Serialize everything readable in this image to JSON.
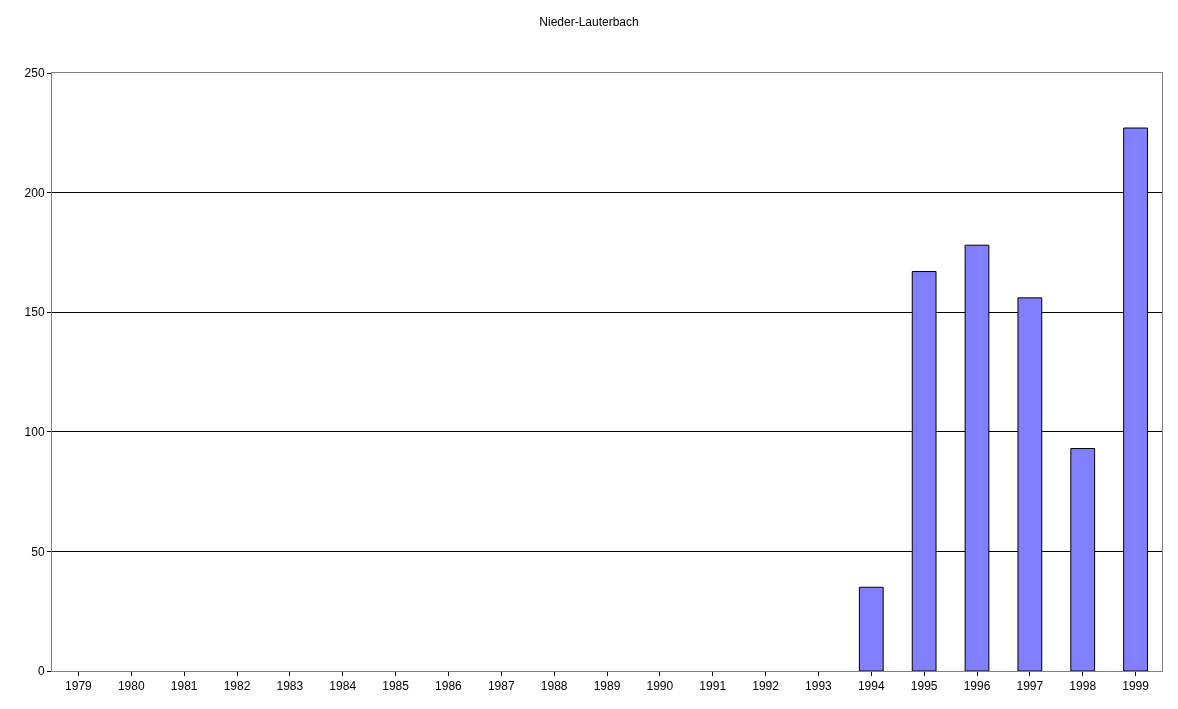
{
  "chart_data": {
    "type": "bar",
    "title": "Nieder-Lauterbach",
    "categories": [
      "1979",
      "1980",
      "1981",
      "1982",
      "1983",
      "1984",
      "1985",
      "1986",
      "1987",
      "1988",
      "1989",
      "1990",
      "1991",
      "1992",
      "1993",
      "1994",
      "1995",
      "1996",
      "1997",
      "1998",
      "1999"
    ],
    "values": [
      null,
      null,
      null,
      null,
      null,
      null,
      null,
      null,
      null,
      null,
      null,
      null,
      null,
      null,
      null,
      35,
      167,
      178,
      156,
      93,
      227
    ],
    "color": "#8080ff",
    "ylim": [
      0,
      250
    ],
    "yticks": [
      0,
      50,
      100,
      150,
      200,
      250
    ],
    "grid": "y"
  }
}
